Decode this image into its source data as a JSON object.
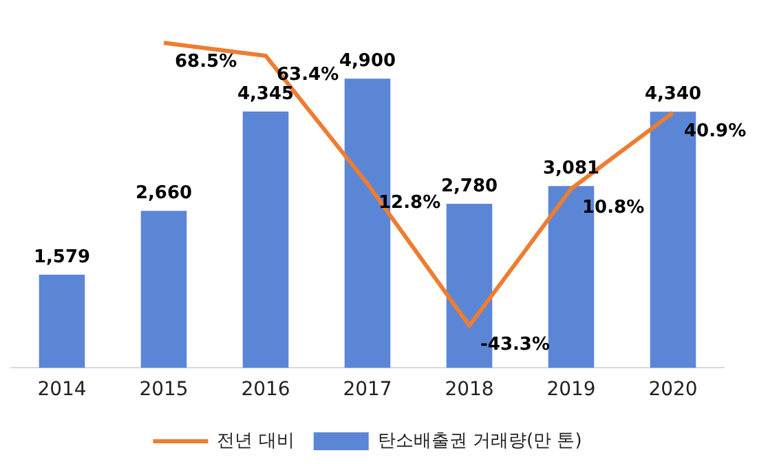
{
  "chart_data": {
    "type": "bar",
    "categories": [
      "2014",
      "2015",
      "2016",
      "2017",
      "2018",
      "2019",
      "2020"
    ],
    "series": [
      {
        "name": "탄소배출권 거래량(만 톤)",
        "type": "bar",
        "color": "#5b86d6",
        "values": [
          1579,
          2660,
          4345,
          4900,
          2780,
          3081,
          4340
        ],
        "value_labels": [
          "1,579",
          "2,660",
          "4,345",
          "4,900",
          "2,780",
          "3,081",
          "4,340"
        ]
      },
      {
        "name": "전년 대비",
        "type": "line",
        "axis": "y2",
        "color": "#ed7d31",
        "values": [
          null,
          68.5,
          63.4,
          12.8,
          -43.3,
          10.8,
          40.9
        ],
        "value_labels": [
          null,
          "68.5%",
          "63.4%",
          "12.8%",
          "-43.3%",
          "10.8%",
          "40.9%"
        ]
      }
    ],
    "tick_labels": "x",
    "grid": false,
    "legend": "bottom",
    "marker": "none",
    "line_style": "solid"
  }
}
